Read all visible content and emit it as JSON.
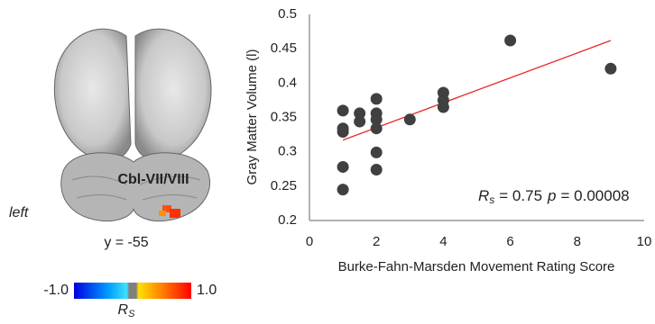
{
  "chart_data": {
    "type": "scatter",
    "xlabel": "Burke-Fahn-Marsden Movement Rating Score",
    "ylabel": "Gray Matter Volume (l)",
    "x": [
      1,
      1,
      1,
      1,
      1,
      1.5,
      1.5,
      2,
      2,
      2,
      2,
      2,
      2,
      3,
      4,
      4,
      4,
      6,
      9
    ],
    "values": [
      0.36,
      0.334,
      0.329,
      0.278,
      0.245,
      0.356,
      0.344,
      0.377,
      0.356,
      0.347,
      0.334,
      0.299,
      0.274,
      0.347,
      0.386,
      0.375,
      0.365,
      0.462,
      0.421
    ],
    "color": "#404040",
    "fit_line": {
      "x": [
        1,
        9
      ],
      "y": [
        0.317,
        0.462
      ],
      "color": "#e8262a"
    },
    "xlim": [
      0,
      10
    ],
    "xticks": [
      0,
      2,
      4,
      6,
      8,
      10
    ],
    "ylim": [
      0.2,
      0.5
    ],
    "yticks": [
      0.2,
      0.25,
      0.3,
      0.35,
      0.4,
      0.45,
      0.5
    ],
    "grid": false,
    "annotation": {
      "r_symbol": "R",
      "r_sub": "s",
      "r_text": "= 0.75",
      "p_symbol": "p",
      "p_text": "= 0.00008"
    }
  },
  "brain_panel": {
    "region_label": "Cbl-VII/VIII",
    "side_label": "left",
    "slice_label": "y = -55",
    "colorbar": {
      "min_label": "-1.0",
      "max_label": "1.0",
      "symbol": "R",
      "symbol_sub": "S"
    }
  }
}
